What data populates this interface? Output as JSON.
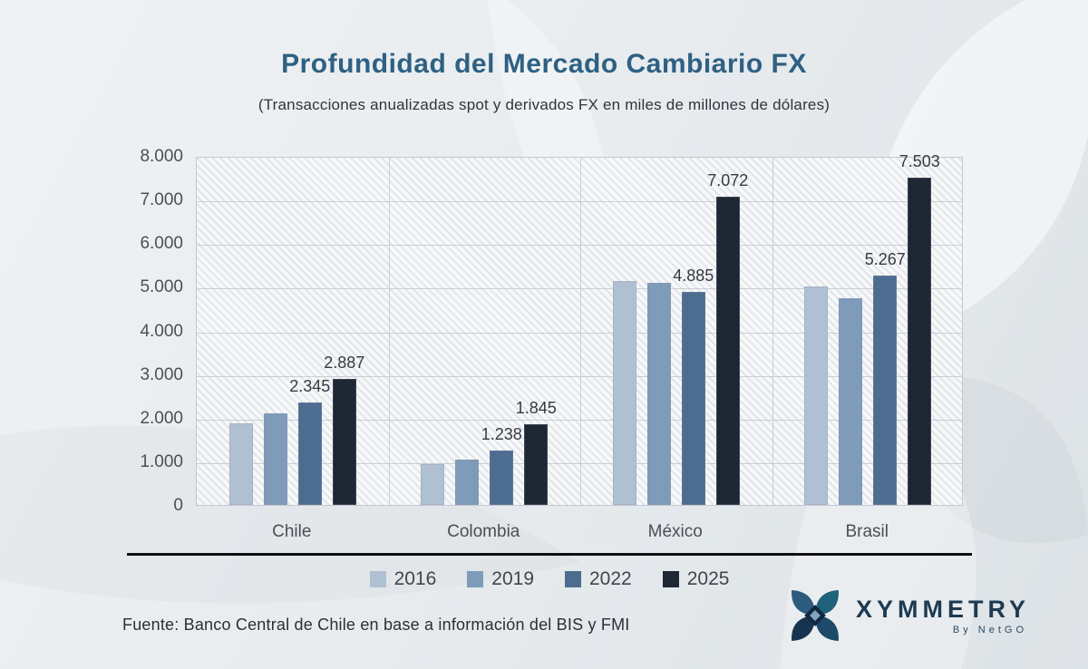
{
  "title": "Profundidad del Mercado Cambiario FX",
  "subtitle": "(Transacciones anualizadas spot y derivados FX en miles de millones de dólares)",
  "source_note": "Fuente: Banco Central de Chile en base a información del BIS y FMI",
  "logo": {
    "brand": "XYMMETRY",
    "byline": "By NetGO"
  },
  "colors": {
    "title_accent": "#2E6183",
    "separator": "#0F0F10",
    "logo_navy": "#1D3A52"
  },
  "chart_data": {
    "type": "bar",
    "title": "Profundidad del Mercado Cambiario FX",
    "subtitle": "(Transacciones anualizadas spot y derivados FX en miles de millones de dólares)",
    "categories": [
      "Chile",
      "Colombia",
      "México",
      "Brasil"
    ],
    "series": [
      {
        "name": "2016",
        "color": "#B0C0D3",
        "values": [
          1880,
          940,
          5140,
          5000
        ],
        "labels": [
          "",
          "",
          "",
          ""
        ]
      },
      {
        "name": "2019",
        "color": "#7E9CBA",
        "values": [
          2090,
          1030,
          5090,
          4730
        ],
        "labels": [
          "",
          "",
          "",
          ""
        ]
      },
      {
        "name": "2022",
        "color": "#4D6D90",
        "values": [
          2345,
          1238,
          4885,
          5267
        ],
        "labels": [
          "2.345",
          "1.238",
          "4.885",
          "5.267"
        ]
      },
      {
        "name": "2025",
        "color": "#1E2834",
        "values": [
          2887,
          1845,
          7072,
          7503
        ],
        "labels": [
          "2.887",
          "1.845",
          "7.072",
          "7.503"
        ]
      }
    ],
    "ylim": [
      0,
      8000
    ],
    "ytick_values": [
      8000,
      7000,
      6000,
      5000,
      4000,
      3000,
      2000,
      1000,
      0
    ],
    "ytick_labels": [
      "8.000",
      "7.000",
      "6.000",
      "5.000",
      "4.000",
      "3.000",
      "2.000",
      "1.000",
      "0"
    ],
    "grid": true,
    "legend_position": "bottom",
    "xlabel": "",
    "ylabel": ""
  }
}
